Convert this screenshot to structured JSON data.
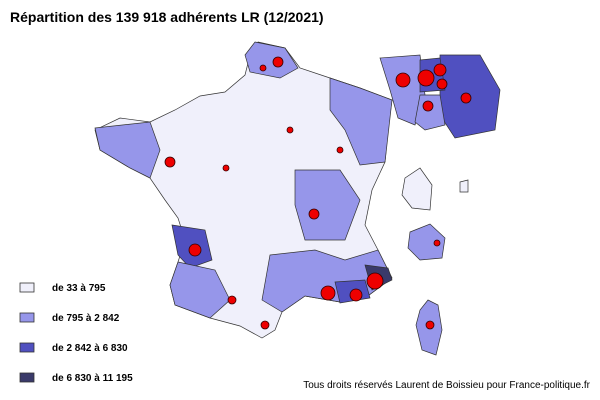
{
  "title": "Répartition des 139 918 adhérents LR (12/2021)",
  "legend": {
    "items": [
      {
        "label": "de 33 à 795",
        "color": "#f0f0fb"
      },
      {
        "label": "de 795 à 2 842",
        "color": "#9696ea"
      },
      {
        "label": "de 2 842 à 6 830",
        "color": "#5050c0"
      },
      {
        "label": "de 6 830 à 11 195",
        "color": "#3a3a6a"
      }
    ]
  },
  "credit": "Tous droits réservés Laurent de Boissieu pour France-politique.fr"
}
